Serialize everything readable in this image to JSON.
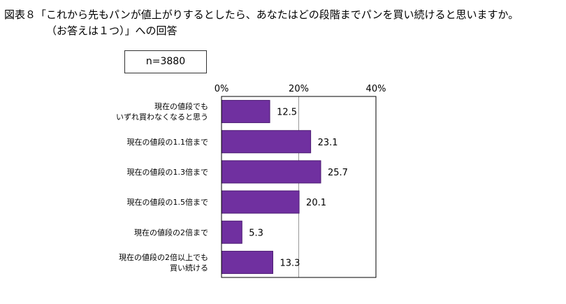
{
  "title": {
    "line1": "図表８「これから先もパンが値上がりするとしたら、あなたはどの段階までパンを買い続けると思いますか。",
    "line2": "（お答えは１つ）」への回答"
  },
  "sample": "n=3880",
  "chart_data": {
    "type": "bar",
    "orientation": "horizontal",
    "categories": [
      [
        "現在の値段でも",
        "いずれ買わなくなると思う"
      ],
      [
        "現在の値段の1.1倍まで"
      ],
      [
        "現在の値段の1.3倍まで"
      ],
      [
        "現在の値段の1.5倍まで"
      ],
      [
        "現在の値段の2倍まで"
      ],
      [
        "現在の値段の2倍以上でも",
        "買い続ける"
      ]
    ],
    "values": [
      12.5,
      23.1,
      25.7,
      20.1,
      5.3,
      13.3
    ],
    "value_labels": [
      "12.5",
      "23.1",
      "25.7",
      "20.1",
      "5.3",
      "13.3"
    ],
    "xlim": [
      0,
      40
    ],
    "xticks": [
      "0%",
      "20%",
      "40%"
    ],
    "bar_color": "#7030a0",
    "bar_edge_color": "#4b1a72",
    "grid": true
  }
}
